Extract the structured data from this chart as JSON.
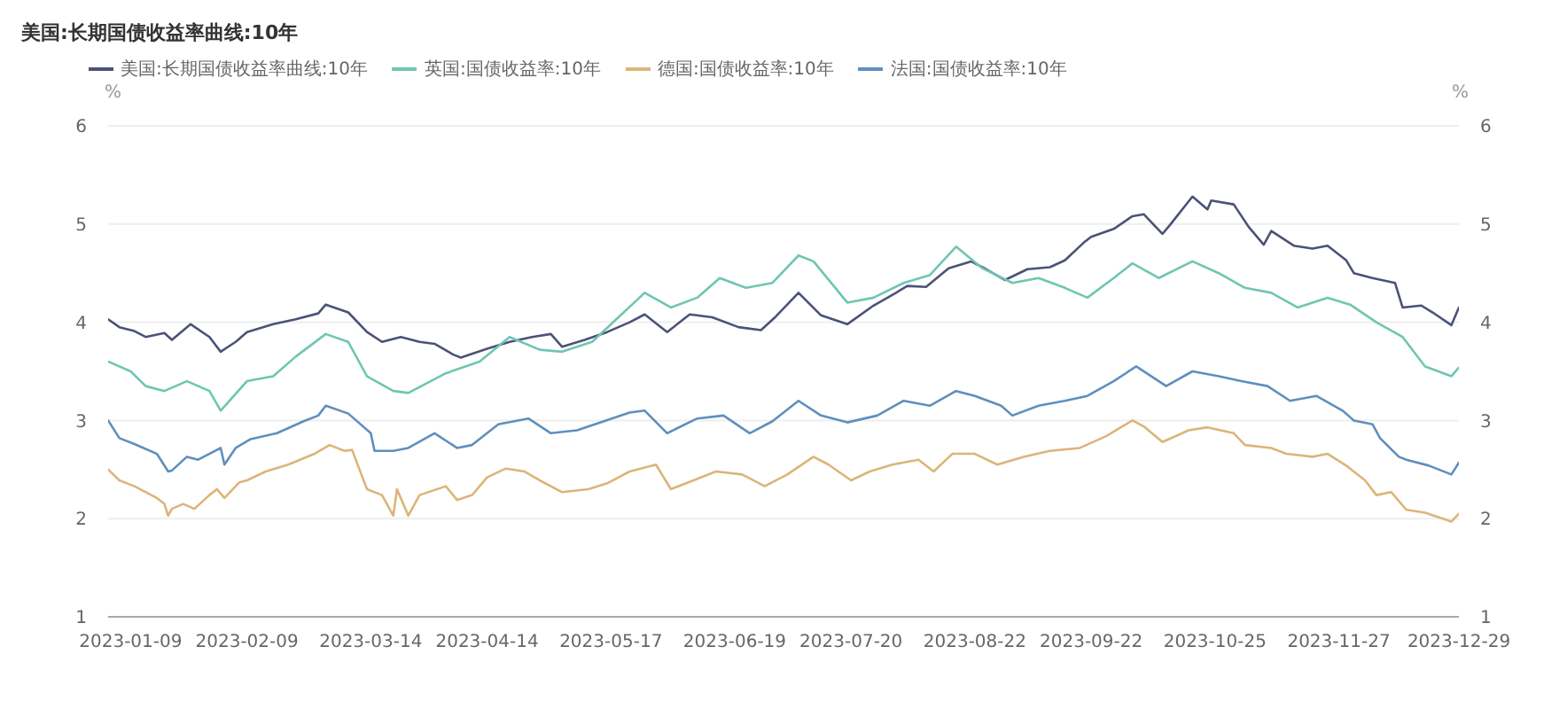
{
  "chart_data": {
    "type": "line",
    "title": "美国:长期国债收益率曲线:10年",
    "ylabel": "%",
    "y2label": "%",
    "xlim": [
      "2023-01-03",
      "2023-12-29"
    ],
    "xticks": [
      "2023-01-09",
      "2023-02-09",
      "2023-03-14",
      "2023-04-14",
      "2023-05-17",
      "2023-06-19",
      "2023-07-20",
      "2023-08-22",
      "2023-09-22",
      "2023-10-25",
      "2023-11-27",
      "2023-12-29"
    ],
    "ylim": [
      1,
      6
    ],
    "yticks": [
      1,
      2,
      3,
      4,
      5,
      6
    ],
    "y2lim": [
      1,
      6
    ],
    "y2ticks": [
      1,
      2,
      3,
      4,
      5,
      6
    ],
    "grid": "y",
    "legend": "top left",
    "marker": "none",
    "line_style": "solid",
    "series": [
      {
        "name": "美国:长期国债收益率曲线:10年",
        "color": "#4b5278",
        "x": [
          "2023-01-03",
          "2023-01-06",
          "2023-01-10",
          "2023-01-13",
          "2023-01-18",
          "2023-01-20",
          "2023-01-25",
          "2023-01-30",
          "2023-02-02",
          "2023-02-06",
          "2023-02-09",
          "2023-02-16",
          "2023-02-22",
          "2023-02-28",
          "2023-03-02",
          "2023-03-08",
          "2023-03-13",
          "2023-03-17",
          "2023-03-22",
          "2023-03-27",
          "2023-03-31",
          "2023-04-05",
          "2023-04-07",
          "2023-04-14",
          "2023-04-20",
          "2023-04-26",
          "2023-05-01",
          "2023-05-04",
          "2023-05-10",
          "2023-05-16",
          "2023-05-22",
          "2023-05-26",
          "2023-06-01",
          "2023-06-07",
          "2023-06-13",
          "2023-06-20",
          "2023-06-26",
          "2023-06-30",
          "2023-07-06",
          "2023-07-12",
          "2023-07-19",
          "2023-07-26",
          "2023-08-01",
          "2023-08-04",
          "2023-08-09",
          "2023-08-15",
          "2023-08-21",
          "2023-08-25",
          "2023-08-30",
          "2023-09-05",
          "2023-09-11",
          "2023-09-15",
          "2023-09-20",
          "2023-09-22",
          "2023-09-28",
          "2023-10-03",
          "2023-10-06",
          "2023-10-11",
          "2023-10-13",
          "2023-10-19",
          "2023-10-23",
          "2023-10-24",
          "2023-10-30",
          "2023-11-03",
          "2023-11-07",
          "2023-11-09",
          "2023-11-15",
          "2023-11-20",
          "2023-11-24",
          "2023-11-29",
          "2023-12-01",
          "2023-12-06",
          "2023-12-12",
          "2023-12-14",
          "2023-12-19",
          "2023-12-22",
          "2023-12-27",
          "2023-12-29"
        ],
        "values": [
          4.03,
          3.95,
          3.91,
          3.85,
          3.89,
          3.82,
          3.98,
          3.85,
          3.7,
          3.8,
          3.9,
          3.98,
          4.03,
          4.09,
          4.18,
          4.1,
          3.9,
          3.8,
          3.85,
          3.8,
          3.78,
          3.67,
          3.64,
          3.73,
          3.8,
          3.85,
          3.88,
          3.75,
          3.82,
          3.9,
          4.0,
          4.08,
          3.9,
          4.08,
          4.05,
          3.95,
          3.92,
          4.06,
          4.3,
          4.07,
          3.98,
          4.17,
          4.3,
          4.37,
          4.36,
          4.55,
          4.62,
          4.54,
          4.43,
          4.54,
          4.56,
          4.63,
          4.81,
          4.87,
          4.95,
          5.08,
          5.1,
          4.9,
          4.99,
          5.28,
          5.15,
          5.24,
          5.2,
          4.97,
          4.79,
          4.93,
          4.78,
          4.75,
          4.78,
          4.63,
          4.5,
          4.45,
          4.4,
          4.15,
          4.17,
          4.1,
          3.97,
          4.15
        ]
      },
      {
        "name": "英国:国债收益率:10年",
        "color": "#6ec6b2",
        "x": [
          "2023-01-03",
          "2023-01-09",
          "2023-01-13",
          "2023-01-18",
          "2023-01-24",
          "2023-01-30",
          "2023-02-02",
          "2023-02-09",
          "2023-02-16",
          "2023-02-22",
          "2023-03-02",
          "2023-03-08",
          "2023-03-13",
          "2023-03-20",
          "2023-03-24",
          "2023-04-03",
          "2023-04-12",
          "2023-04-20",
          "2023-04-28",
          "2023-05-04",
          "2023-05-12",
          "2023-05-19",
          "2023-05-26",
          "2023-06-02",
          "2023-06-09",
          "2023-06-15",
          "2023-06-22",
          "2023-06-29",
          "2023-07-06",
          "2023-07-10",
          "2023-07-19",
          "2023-07-26",
          "2023-08-03",
          "2023-08-10",
          "2023-08-17",
          "2023-08-24",
          "2023-09-01",
          "2023-09-08",
          "2023-09-15",
          "2023-09-21",
          "2023-09-28",
          "2023-10-03",
          "2023-10-10",
          "2023-10-19",
          "2023-10-26",
          "2023-11-02",
          "2023-11-09",
          "2023-11-16",
          "2023-11-24",
          "2023-11-30",
          "2023-12-07",
          "2023-12-14",
          "2023-12-20",
          "2023-12-27",
          "2023-12-29"
        ],
        "values": [
          3.6,
          3.5,
          3.35,
          3.3,
          3.4,
          3.3,
          3.1,
          3.4,
          3.45,
          3.65,
          3.88,
          3.8,
          3.45,
          3.3,
          3.28,
          3.48,
          3.6,
          3.85,
          3.72,
          3.7,
          3.8,
          4.05,
          4.3,
          4.15,
          4.25,
          4.45,
          4.35,
          4.4,
          4.68,
          4.62,
          4.2,
          4.25,
          4.4,
          4.48,
          4.77,
          4.55,
          4.4,
          4.45,
          4.35,
          4.25,
          4.45,
          4.6,
          4.45,
          4.62,
          4.5,
          4.35,
          4.3,
          4.15,
          4.25,
          4.18,
          4.0,
          3.85,
          3.55,
          3.45,
          3.54
        ]
      },
      {
        "name": "德国:国债收益率:10年",
        "color": "#dcb57a",
        "x": [
          "2023-01-03",
          "2023-01-06",
          "2023-01-10",
          "2023-01-16",
          "2023-01-18",
          "2023-01-19",
          "2023-01-20",
          "2023-01-23",
          "2023-01-26",
          "2023-01-30",
          "2023-02-01",
          "2023-02-03",
          "2023-02-07",
          "2023-02-09",
          "2023-02-14",
          "2023-02-20",
          "2023-02-27",
          "2023-03-03",
          "2023-03-07",
          "2023-03-09",
          "2023-03-13",
          "2023-03-17",
          "2023-03-20",
          "2023-03-21",
          "2023-03-24",
          "2023-03-27",
          "2023-04-03",
          "2023-04-06",
          "2023-04-10",
          "2023-04-14",
          "2023-04-19",
          "2023-04-24",
          "2023-04-28",
          "2023-05-04",
          "2023-05-11",
          "2023-05-16",
          "2023-05-22",
          "2023-05-29",
          "2023-06-02",
          "2023-06-08",
          "2023-06-14",
          "2023-06-21",
          "2023-06-27",
          "2023-07-03",
          "2023-07-10",
          "2023-07-14",
          "2023-07-20",
          "2023-07-25",
          "2023-07-31",
          "2023-08-07",
          "2023-08-11",
          "2023-08-16",
          "2023-08-22",
          "2023-08-28",
          "2023-09-04",
          "2023-09-11",
          "2023-09-19",
          "2023-09-26",
          "2023-10-03",
          "2023-10-06",
          "2023-10-11",
          "2023-10-18",
          "2023-10-23",
          "2023-10-30",
          "2023-11-02",
          "2023-11-09",
          "2023-11-13",
          "2023-11-20",
          "2023-11-24",
          "2023-11-29",
          "2023-12-04",
          "2023-12-07",
          "2023-12-11",
          "2023-12-15",
          "2023-12-20",
          "2023-12-27",
          "2023-12-29"
        ],
        "values": [
          2.5,
          2.39,
          2.33,
          2.21,
          2.15,
          2.03,
          2.1,
          2.15,
          2.1,
          2.24,
          2.3,
          2.21,
          2.37,
          2.39,
          2.48,
          2.55,
          2.66,
          2.75,
          2.69,
          2.7,
          2.3,
          2.24,
          2.03,
          2.3,
          2.03,
          2.24,
          2.33,
          2.19,
          2.24,
          2.42,
          2.51,
          2.48,
          2.39,
          2.27,
          2.3,
          2.36,
          2.48,
          2.55,
          2.3,
          2.39,
          2.48,
          2.45,
          2.33,
          2.45,
          2.63,
          2.55,
          2.39,
          2.48,
          2.55,
          2.6,
          2.48,
          2.66,
          2.66,
          2.55,
          2.63,
          2.69,
          2.72,
          2.84,
          3.0,
          2.94,
          2.78,
          2.9,
          2.93,
          2.87,
          2.75,
          2.72,
          2.66,
          2.63,
          2.66,
          2.54,
          2.39,
          2.24,
          2.27,
          2.09,
          2.06,
          1.97,
          2.05
        ]
      },
      {
        "name": "法国:国债收益率:10年",
        "color": "#5f8fbd",
        "x": [
          "2023-01-03",
          "2023-01-06",
          "2023-01-10",
          "2023-01-16",
          "2023-01-19",
          "2023-01-20",
          "2023-01-24",
          "2023-01-27",
          "2023-02-02",
          "2023-02-03",
          "2023-02-06",
          "2023-02-10",
          "2023-02-17",
          "2023-02-24",
          "2023-02-28",
          "2023-03-02",
          "2023-03-08",
          "2023-03-14",
          "2023-03-15",
          "2023-03-20",
          "2023-03-24",
          "2023-03-31",
          "2023-04-06",
          "2023-04-10",
          "2023-04-17",
          "2023-04-25",
          "2023-05-01",
          "2023-05-08",
          "2023-05-15",
          "2023-05-22",
          "2023-05-26",
          "2023-06-01",
          "2023-06-09",
          "2023-06-16",
          "2023-06-23",
          "2023-06-29",
          "2023-07-06",
          "2023-07-12",
          "2023-07-19",
          "2023-07-27",
          "2023-08-03",
          "2023-08-10",
          "2023-08-17",
          "2023-08-22",
          "2023-08-29",
          "2023-09-01",
          "2023-09-08",
          "2023-09-15",
          "2023-09-21",
          "2023-09-28",
          "2023-10-04",
          "2023-10-12",
          "2023-10-19",
          "2023-10-26",
          "2023-11-01",
          "2023-11-08",
          "2023-11-14",
          "2023-11-21",
          "2023-11-28",
          "2023-12-01",
          "2023-12-06",
          "2023-12-08",
          "2023-12-13",
          "2023-12-15",
          "2023-12-21",
          "2023-12-27",
          "2023-12-29"
        ],
        "values": [
          3.0,
          2.82,
          2.76,
          2.66,
          2.48,
          2.49,
          2.63,
          2.6,
          2.72,
          2.55,
          2.72,
          2.81,
          2.87,
          2.99,
          3.05,
          3.15,
          3.07,
          2.87,
          2.69,
          2.69,
          2.72,
          2.87,
          2.72,
          2.75,
          2.96,
          3.02,
          2.87,
          2.9,
          2.99,
          3.08,
          3.1,
          2.87,
          3.02,
          3.05,
          2.87,
          2.99,
          3.2,
          3.05,
          2.98,
          3.05,
          3.2,
          3.15,
          3.3,
          3.25,
          3.15,
          3.05,
          3.15,
          3.2,
          3.25,
          3.4,
          3.55,
          3.35,
          3.5,
          3.45,
          3.4,
          3.35,
          3.2,
          3.25,
          3.1,
          3.0,
          2.96,
          2.82,
          2.63,
          2.6,
          2.54,
          2.45,
          2.57
        ]
      }
    ]
  }
}
